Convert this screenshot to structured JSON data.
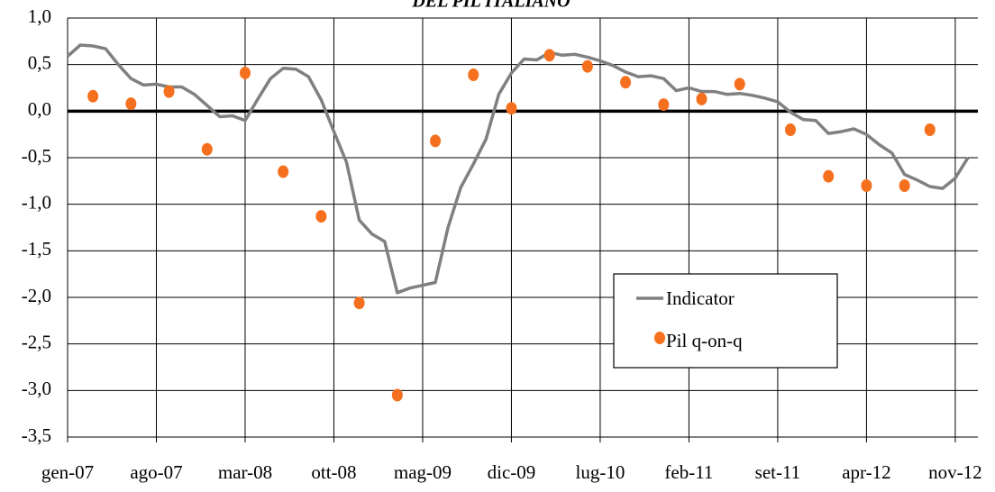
{
  "chart_data": {
    "type": "line",
    "title": "DEL PIL ITALIANO",
    "categories": [
      "gen-07",
      null,
      null,
      null,
      null,
      null,
      null,
      "ago-07",
      null,
      null,
      null,
      null,
      null,
      null,
      "mar-08",
      null,
      null,
      null,
      null,
      null,
      null,
      "ott-08",
      null,
      null,
      null,
      null,
      null,
      null,
      "mag-09",
      null,
      null,
      null,
      null,
      null,
      null,
      "dic-09",
      null,
      null,
      null,
      null,
      null,
      null,
      "lug-10",
      null,
      null,
      null,
      null,
      null,
      null,
      "feb-11",
      null,
      null,
      null,
      null,
      null,
      null,
      "set-11",
      null,
      null,
      null,
      null,
      null,
      null,
      "apr-12",
      null,
      null,
      null,
      null,
      null,
      null,
      "nov-12",
      null
    ],
    "series": [
      {
        "name": "Indicator",
        "type": "line",
        "color": "#808080",
        "values": [
          0.59,
          0.71,
          0.7,
          0.67,
          0.5,
          0.35,
          0.28,
          0.29,
          0.26,
          0.26,
          0.18,
          0.06,
          -0.06,
          -0.05,
          -0.1,
          0.13,
          0.35,
          0.46,
          0.45,
          0.37,
          0.12,
          -0.22,
          -0.55,
          -1.17,
          -1.32,
          -1.4,
          -1.95,
          -1.9,
          -1.87,
          -1.84,
          -1.25,
          -0.82,
          -0.57,
          -0.3,
          0.18,
          0.41,
          0.56,
          0.55,
          0.63,
          0.6,
          0.61,
          0.58,
          0.54,
          0.49,
          0.42,
          0.37,
          0.38,
          0.35,
          0.22,
          0.25,
          0.21,
          0.21,
          0.18,
          0.19,
          0.17,
          0.14,
          0.1,
          -0.01,
          -0.09,
          -0.1,
          -0.24,
          -0.22,
          -0.19,
          -0.25,
          -0.36,
          -0.45,
          -0.68,
          -0.74,
          -0.81,
          -0.83,
          -0.72,
          -0.5
        ]
      },
      {
        "name": "Pil q-on-q",
        "type": "scatter",
        "color": "#f5701e",
        "values": [
          null,
          null,
          0.16,
          null,
          null,
          0.08,
          null,
          null,
          0.21,
          null,
          null,
          -0.41,
          null,
          null,
          0.41,
          null,
          null,
          -0.65,
          null,
          null,
          -1.13,
          null,
          null,
          -2.06,
          null,
          null,
          -3.05,
          null,
          null,
          -0.32,
          null,
          null,
          0.39,
          null,
          null,
          0.03,
          null,
          null,
          0.6,
          null,
          null,
          0.48,
          null,
          null,
          0.31,
          null,
          null,
          0.07,
          null,
          null,
          0.13,
          null,
          null,
          0.29,
          null,
          null,
          null,
          -0.2,
          null,
          null,
          -0.7,
          null,
          null,
          -0.8,
          null,
          null,
          -0.8,
          null,
          -0.2,
          null,
          null,
          null
        ]
      }
    ],
    "ylim": [
      -3.5,
      1.0
    ],
    "yticks": [
      {
        "value": 1.0,
        "label": "1,0"
      },
      {
        "value": 0.5,
        "label": "0,5"
      },
      {
        "value": 0,
        "label": "0,0"
      },
      {
        "value": -0.5,
        "label": "-0,5"
      },
      {
        "value": -1.0,
        "label": "-1,0"
      },
      {
        "value": -1.5,
        "label": "-1,5"
      },
      {
        "value": -2.0,
        "label": "-2,0"
      },
      {
        "value": -2.5,
        "label": "-2,5"
      },
      {
        "value": -3.0,
        "label": "-3,0"
      },
      {
        "value": -3.5,
        "label": "-3,5"
      }
    ],
    "grid": true,
    "legend": "lower-right"
  }
}
